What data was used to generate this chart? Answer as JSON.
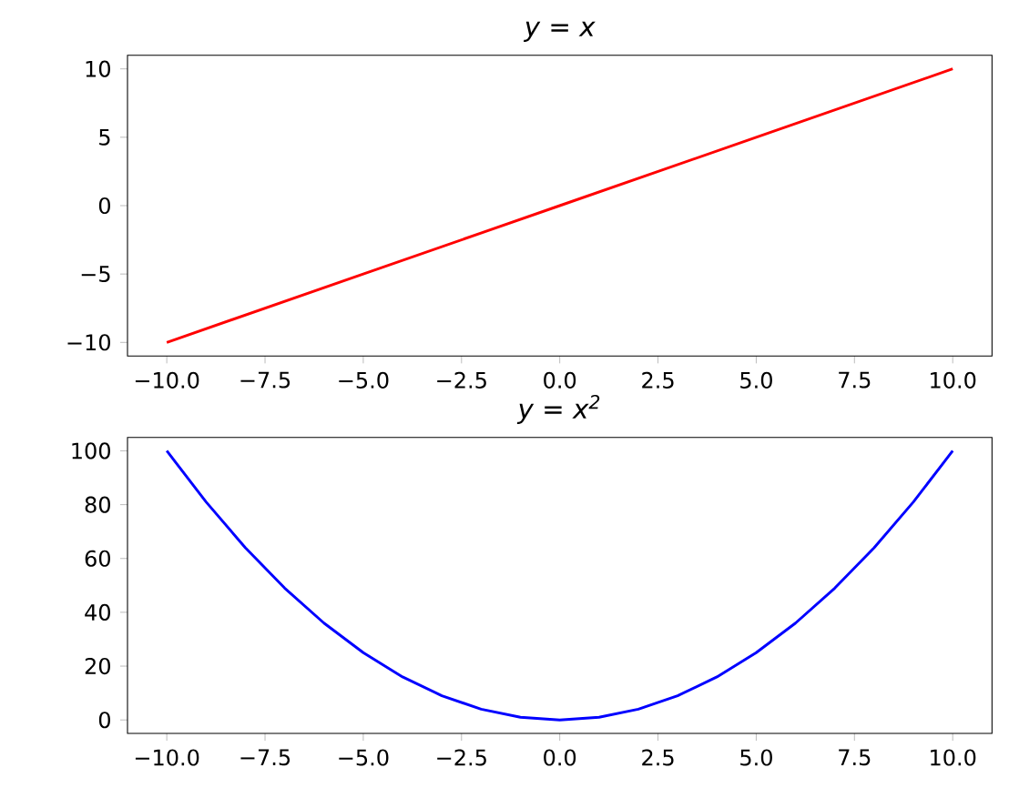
{
  "chart_data": [
    {
      "type": "line",
      "title": "y = x",
      "x": [
        -10,
        -5,
        0,
        5,
        10
      ],
      "series": [
        {
          "color": "#ff0000",
          "values": [
            -10,
            -5,
            0,
            5,
            10
          ]
        }
      ],
      "xlim": [
        -11,
        11
      ],
      "ylim": [
        -11,
        11
      ],
      "xticks": [
        {
          "value": -10,
          "label": "−10.0"
        },
        {
          "value": -7.5,
          "label": "−7.5"
        },
        {
          "value": -5,
          "label": "−5.0"
        },
        {
          "value": -2.5,
          "label": "−2.5"
        },
        {
          "value": 0,
          "label": "0.0"
        },
        {
          "value": 2.5,
          "label": "2.5"
        },
        {
          "value": 5,
          "label": "5.0"
        },
        {
          "value": 7.5,
          "label": "7.5"
        },
        {
          "value": 10,
          "label": "10.0"
        }
      ],
      "yticks": [
        {
          "value": -10,
          "label": "−10"
        },
        {
          "value": -5,
          "label": "−5"
        },
        {
          "value": 0,
          "label": "0"
        },
        {
          "value": 5,
          "label": "5"
        },
        {
          "value": 10,
          "label": "10"
        }
      ]
    },
    {
      "type": "line",
      "title": "y = x$^{2}$",
      "x": [
        -10,
        -9,
        -8,
        -7,
        -6,
        -5,
        -4,
        -3,
        -2,
        -1,
        0,
        1,
        2,
        3,
        4,
        5,
        6,
        7,
        8,
        9,
        10
      ],
      "series": [
        {
          "color": "#0000ff",
          "values": [
            100,
            81,
            64,
            49,
            36,
            25,
            16,
            9,
            4,
            1,
            0,
            1,
            4,
            9,
            16,
            25,
            36,
            49,
            64,
            81,
            100
          ]
        }
      ],
      "xlim": [
        -11,
        11
      ],
      "ylim": [
        -5,
        105
      ],
      "xticks": [
        {
          "value": -10,
          "label": "−10.0"
        },
        {
          "value": -7.5,
          "label": "−7.5"
        },
        {
          "value": -5,
          "label": "−5.0"
        },
        {
          "value": -2.5,
          "label": "−2.5"
        },
        {
          "value": 0,
          "label": "0.0"
        },
        {
          "value": 2.5,
          "label": "2.5"
        },
        {
          "value": 5,
          "label": "5.0"
        },
        {
          "value": 7.5,
          "label": "7.5"
        },
        {
          "value": 10,
          "label": "10.0"
        }
      ],
      "yticks": [
        {
          "value": 0,
          "label": "0"
        },
        {
          "value": 20,
          "label": "20"
        },
        {
          "value": 40,
          "label": "40"
        },
        {
          "value": 60,
          "label": "60"
        },
        {
          "value": 80,
          "label": "80"
        },
        {
          "value": 100,
          "label": "100"
        }
      ]
    }
  ]
}
